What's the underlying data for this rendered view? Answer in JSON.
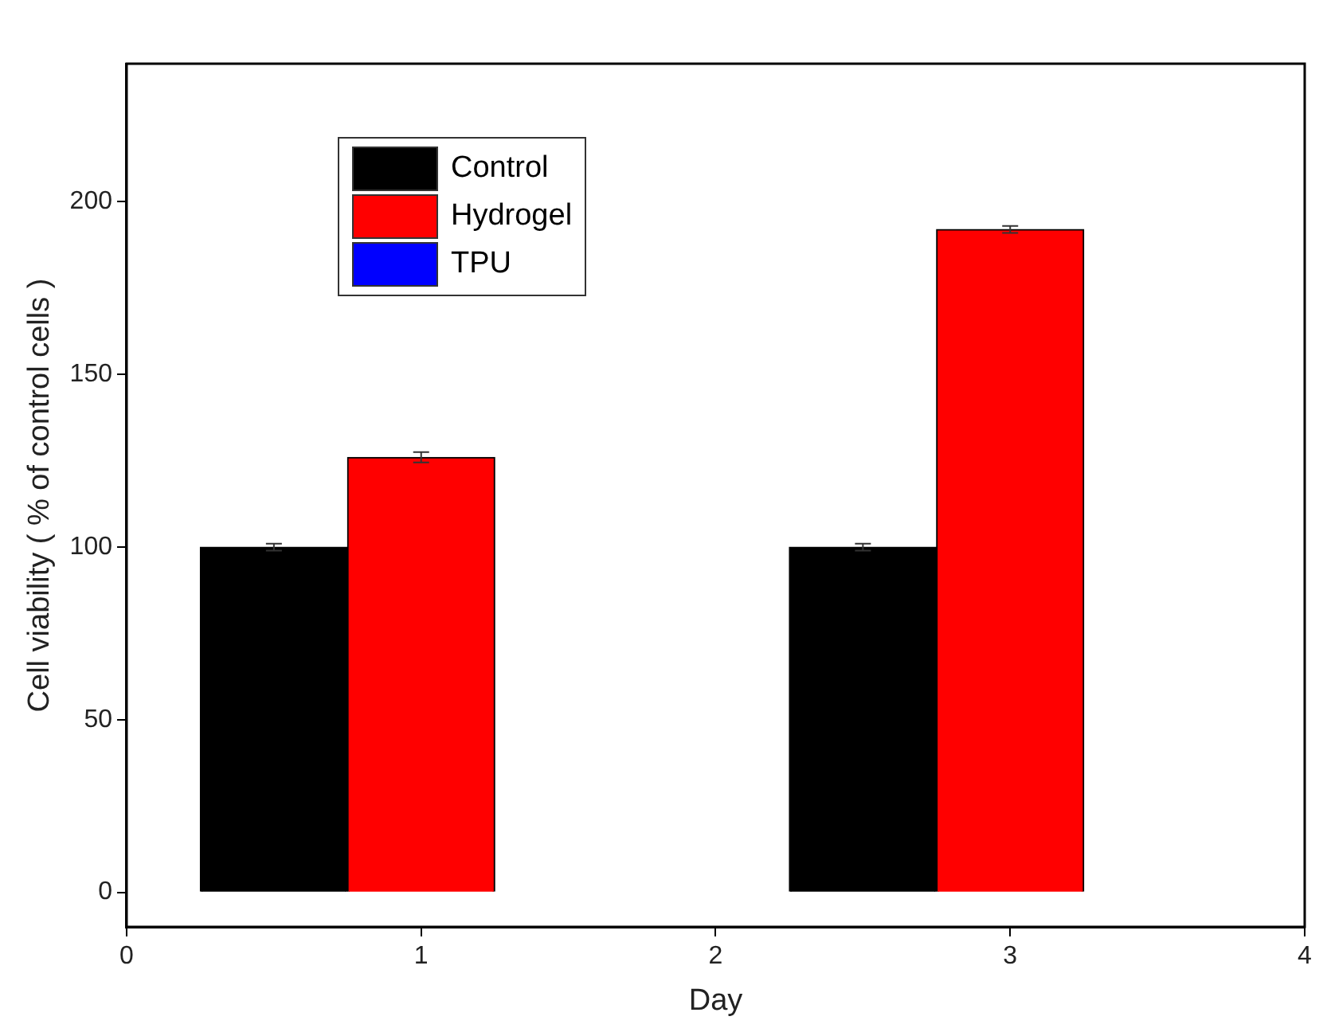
{
  "chart_data": {
    "type": "bar",
    "xlabel": "Day",
    "ylabel": "Cell viability ( % of control cells )",
    "xlim": [
      0,
      4
    ],
    "xticks": [
      0,
      1,
      2,
      3,
      4
    ],
    "ylim": [
      -10,
      240
    ],
    "yticks": [
      0,
      50,
      100,
      150,
      200
    ],
    "legend": "top left",
    "grid": false,
    "series": [
      {
        "name": "Control",
        "color": "#000000",
        "x": [
          0.5,
          2.5
        ],
        "values": [
          100,
          100
        ],
        "errors": [
          1,
          1
        ]
      },
      {
        "name": "Hydrogel",
        "color": "#ff0000",
        "x": [
          1,
          3
        ],
        "values": [
          126,
          192
        ],
        "errors": [
          1.5,
          1
        ]
      },
      {
        "name": "TPU",
        "color": "#0000ff",
        "x": [
          1.5,
          3.5
        ],
        "values": [
          0,
          0
        ]
      }
    ]
  }
}
